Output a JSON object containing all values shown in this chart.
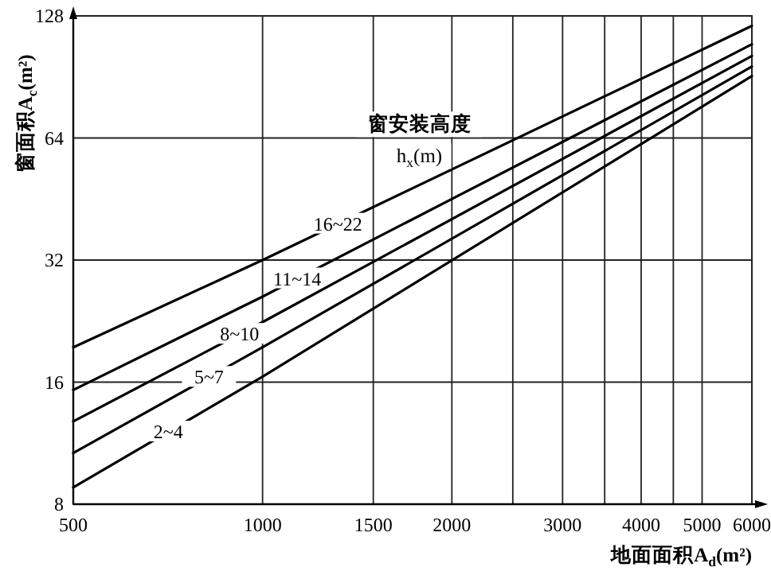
{
  "chart_data": {
    "type": "line",
    "xlabel": "地面面积A$_{d}$(m²)",
    "ylabel": "窗面积A$_{c}$(m²)",
    "legend_title": "窗安装高度",
    "annotations": [
      "h$_{x}$(m)"
    ],
    "log": "xy",
    "grid": true,
    "line_style": "solid",
    "x": [
      500,
      1000,
      6000
    ],
    "xlim": [
      500,
      6000
    ],
    "ylim": [
      8,
      128
    ],
    "xticks": [
      500,
      1000,
      1500,
      2000,
      {
        "value": 2500,
        "label": null
      },
      3000,
      {
        "value": 3500,
        "label": null
      },
      4000,
      {
        "value": 4500,
        "label": null
      },
      5000,
      6000
    ],
    "yticks": [
      8,
      16,
      32,
      64,
      128
    ],
    "series": [
      {
        "name": "16~22",
        "color": "#000000",
        "values": [
          19.5,
          32,
          121
        ]
      },
      {
        "name": "11~14",
        "color": "#000000",
        "values": [
          15.3,
          26,
          109
        ]
      },
      {
        "name": "8~10",
        "color": "#000000",
        "values": [
          12.8,
          22.5,
          102
        ]
      },
      {
        "name": "5~7",
        "color": "#000000",
        "values": [
          10.7,
          19.5,
          96
        ]
      },
      {
        "name": "2~4",
        "color": "#000000",
        "values": [
          8.8,
          16.5,
          91
        ]
      }
    ]
  }
}
